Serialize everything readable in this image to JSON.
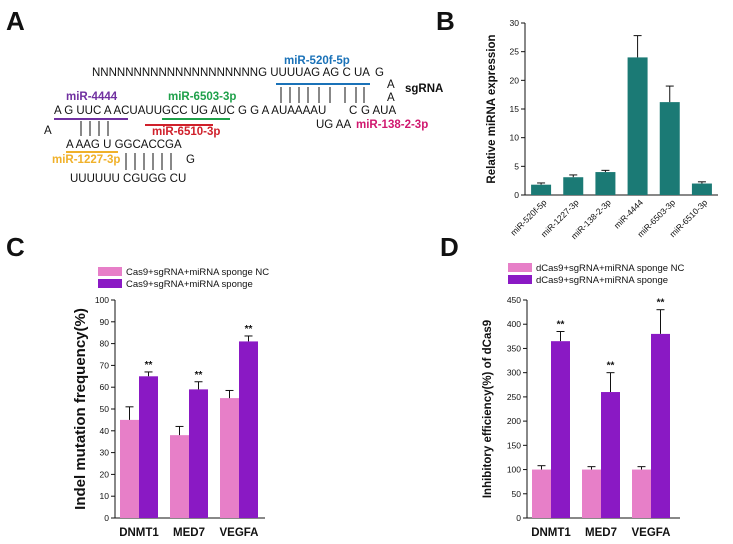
{
  "panel_labels": {
    "a": "A",
    "b": "B",
    "c": "C",
    "d": "D"
  },
  "panel_a": {
    "row1": "NNNNNNNNNNNNNNNNNNNNG UUUUAG AG C UA",
    "row1_tail_g": "G",
    "sgrna_label": "sgRNA",
    "tail_a1": "A",
    "tail_a2": "A",
    "right_c": "C",
    "right_gaua": "G AUA",
    "ugaa": "UG AA",
    "row2": "A G UUC A ACUAUUGCC UG AUC G G A AUAAAAU",
    "row3_a": "A",
    "row4": "A AAG U GGCACCGA",
    "row5_g": "G",
    "row6": "UUUUUU CGUGG CU",
    "mirna": {
      "m520": "miR-520f-5p",
      "m4444": "miR-4444",
      "m6503": "miR-6503-3p",
      "m6510": "miR-6510-3p",
      "m1382": "miR-138-2-3p",
      "m1227": "miR-1227-3p"
    },
    "colors": {
      "m520": "#1a72b8",
      "m4444": "#7030a0",
      "m6503": "#1fa04a",
      "m6510": "#d0202b",
      "m1382": "#d0186f",
      "m1227": "#f0b12a",
      "pink_nt": "#d0186f"
    }
  },
  "chart_data": [
    {
      "id": "B",
      "type": "bar",
      "title": "",
      "xlabel": "",
      "ylabel": "Relative miRNA expression",
      "categories": [
        "miR-520f-5p",
        "miR-1227-3p",
        "miR-138-2-3p",
        "miR-4444",
        "miR-6503-3p",
        "miR-6510-3p"
      ],
      "values": [
        1.8,
        3.1,
        4.0,
        24.0,
        16.2,
        2.0
      ],
      "errors": [
        0.3,
        0.4,
        0.3,
        3.8,
        2.8,
        0.3
      ],
      "ylim": [
        0,
        30
      ],
      "yticks": [
        0,
        5,
        10,
        15,
        20,
        25,
        30
      ],
      "color": "#1b7a75"
    },
    {
      "id": "C",
      "type": "bar",
      "title": "",
      "xlabel": "",
      "ylabel": "Indel mutation frequency(%)",
      "categories": [
        "DNMT1",
        "MED7",
        "VEGFA"
      ],
      "series": [
        {
          "name": "Cas9+sgRNA+miRNA sponge NC",
          "values": [
            45,
            38,
            55
          ],
          "errors": [
            6,
            4,
            3.5
          ],
          "color": "#e77fc8"
        },
        {
          "name": "Cas9+sgRNA+miRNA sponge",
          "values": [
            65,
            59,
            81
          ],
          "errors": [
            2,
            3.5,
            2.5
          ],
          "color": "#8a19c4"
        }
      ],
      "significance": [
        "**",
        "**",
        "**"
      ],
      "ylim": [
        0,
        100
      ],
      "yticks": [
        0,
        10,
        20,
        30,
        40,
        50,
        60,
        70,
        80,
        90,
        100
      ],
      "legend": "top-left"
    },
    {
      "id": "D",
      "type": "bar",
      "title": "",
      "xlabel": "",
      "ylabel": "Inhibitory efficiency(%) of dCas9",
      "categories": [
        "DNMT1",
        "MED7",
        "VEGFA"
      ],
      "series": [
        {
          "name": "dCas9+sgRNA+miRNA sponge NC",
          "values": [
            100,
            100,
            100
          ],
          "errors": [
            8,
            6,
            6
          ],
          "color": "#e77fc8"
        },
        {
          "name": "dCas9+sgRNA+miRNA sponge",
          "values": [
            365,
            260,
            380
          ],
          "errors": [
            20,
            40,
            50
          ],
          "color": "#8a19c4"
        }
      ],
      "significance": [
        "**",
        "**",
        "**"
      ],
      "ylim": [
        0,
        450
      ],
      "yticks": [
        0,
        50,
        100,
        150,
        200,
        250,
        300,
        350,
        400,
        450
      ],
      "legend": "top-left"
    }
  ]
}
